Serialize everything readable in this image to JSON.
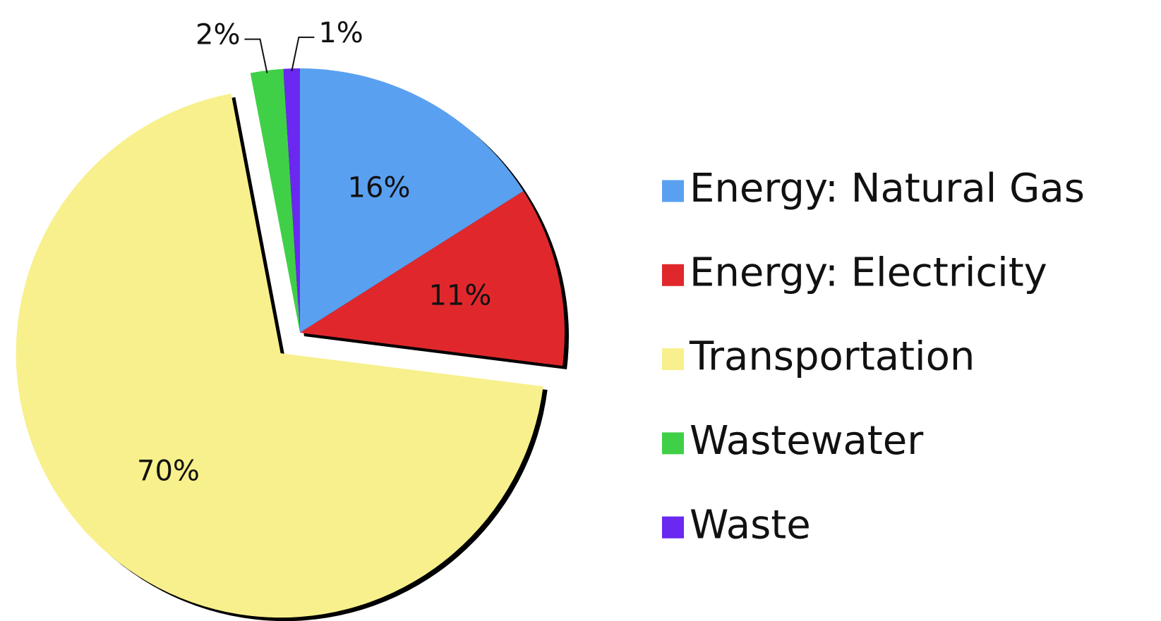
{
  "chart_data": {
    "type": "pie",
    "categories": [
      "Energy: Natural Gas",
      "Energy: Electricity",
      "Transportation",
      "Wastewater",
      "Waste"
    ],
    "values": [
      16,
      11,
      70,
      2,
      1
    ],
    "value_labels": [
      "16%",
      "11%",
      "70%",
      "2%",
      "1%"
    ],
    "colors": [
      "#5aa0f0",
      "#e0282c",
      "#f8f08c",
      "#40d048",
      "#6a28f0"
    ],
    "exploded": [
      false,
      false,
      true,
      false,
      false
    ],
    "legend": "right"
  }
}
